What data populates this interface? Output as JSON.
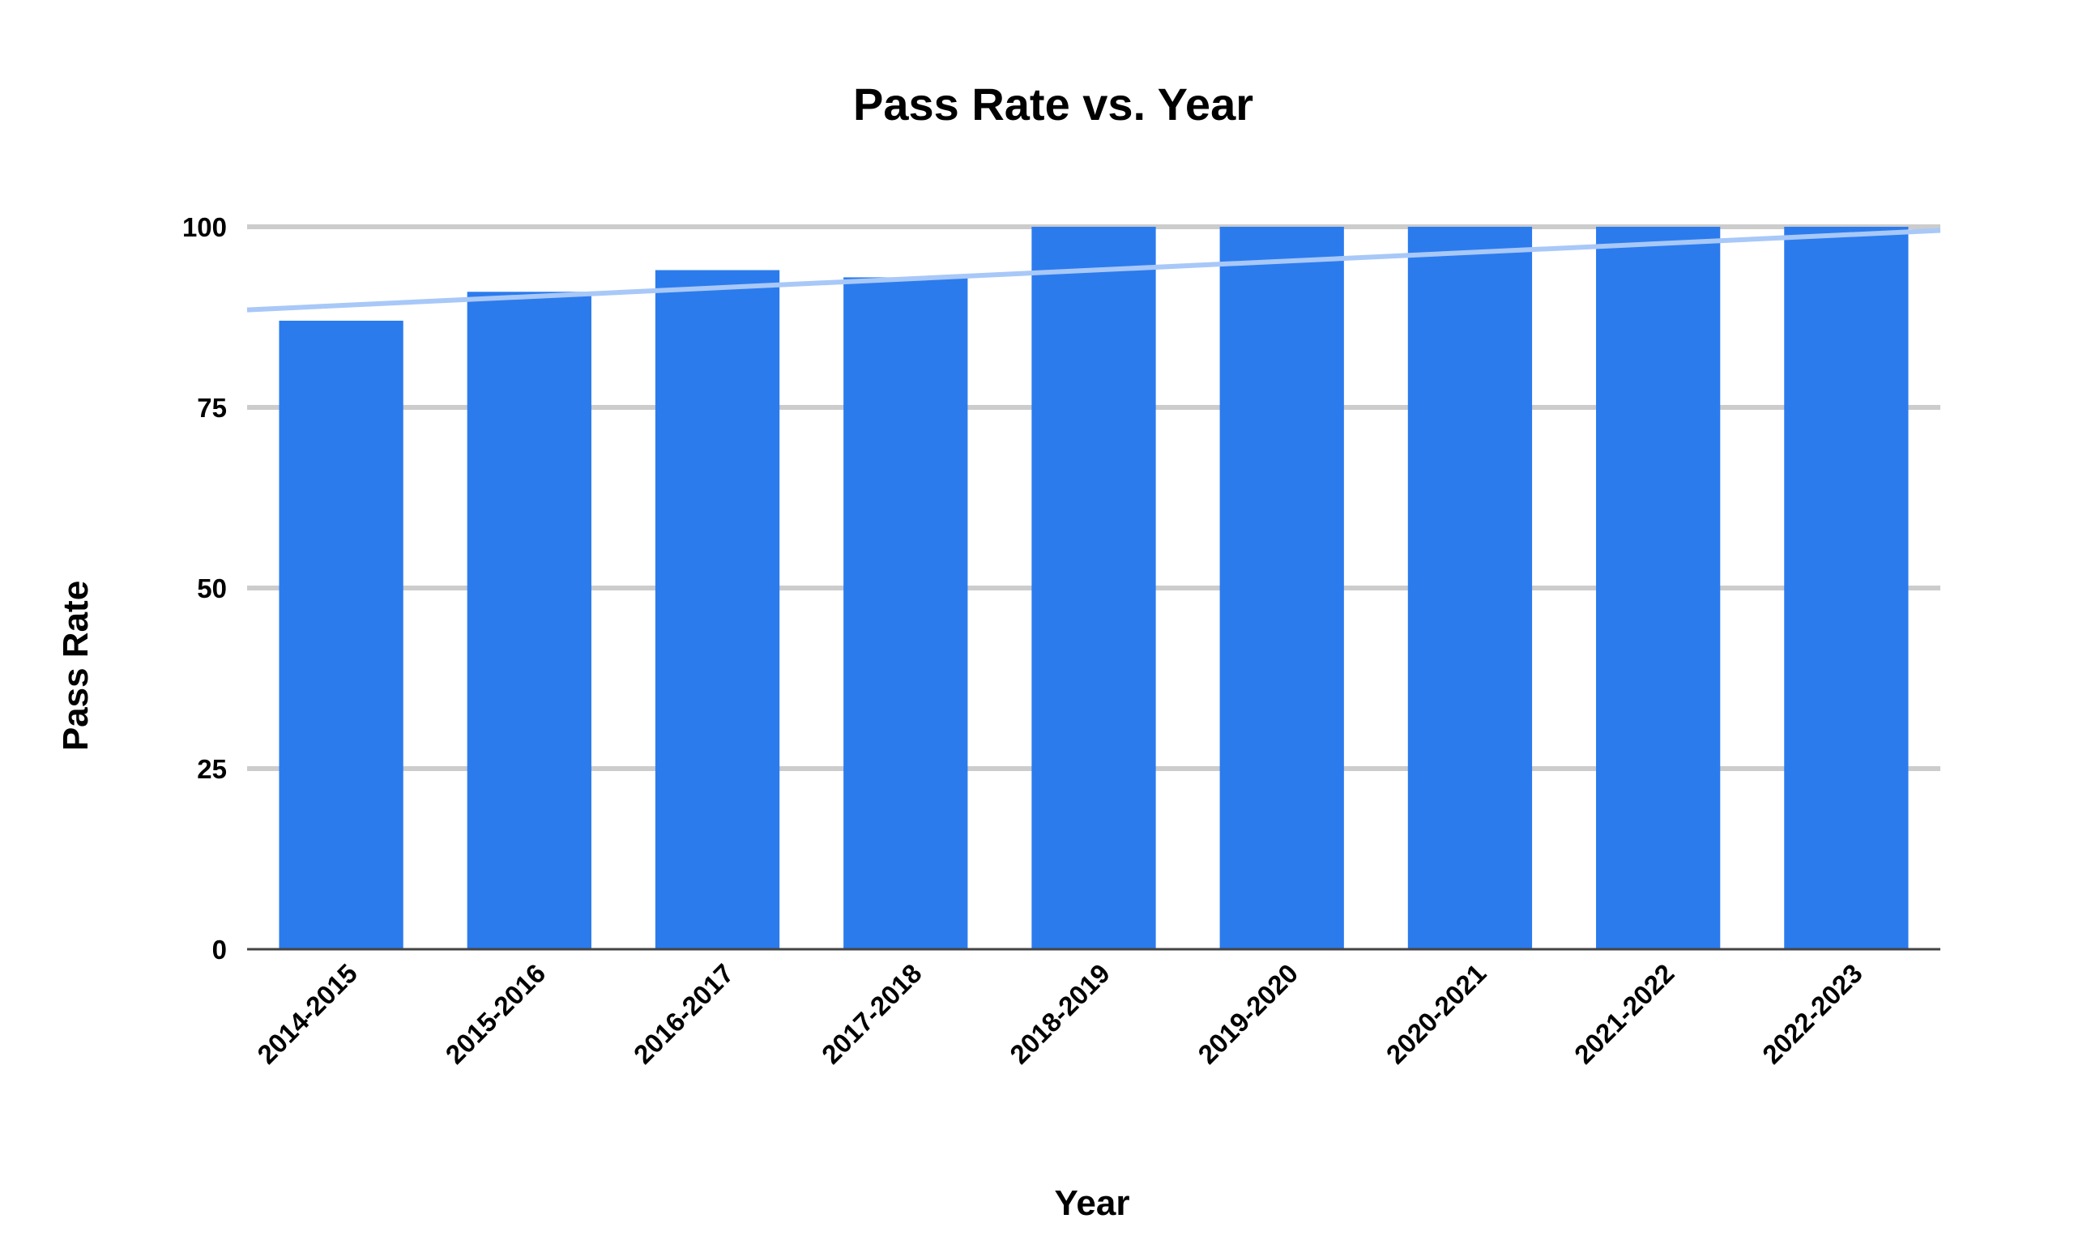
{
  "chart_data": {
    "type": "bar",
    "title": "Pass Rate vs. Year",
    "xlabel": "Year",
    "ylabel": "Pass Rate",
    "categories": [
      "2014-2015",
      "2015-2016",
      "2016-2017",
      "2017-2018",
      "2018-2019",
      "2019-2020",
      "2020-2021",
      "2021-2022",
      "2022-2023"
    ],
    "series": [
      {
        "values": [
          87,
          91,
          94,
          93,
          100,
          100,
          100,
          100,
          100
        ]
      }
    ],
    "trendline": {
      "type": "linear",
      "start": 88.5,
      "end": 99.5
    },
    "ylim": [
      0,
      100
    ],
    "yticks": [
      0,
      25,
      50,
      75,
      100
    ],
    "grid": true,
    "legend": "none",
    "colors": {
      "bar": "#2b7bed",
      "trendline": "#a8c8f8",
      "grid": "#cccccc",
      "axis": "#444444"
    }
  }
}
